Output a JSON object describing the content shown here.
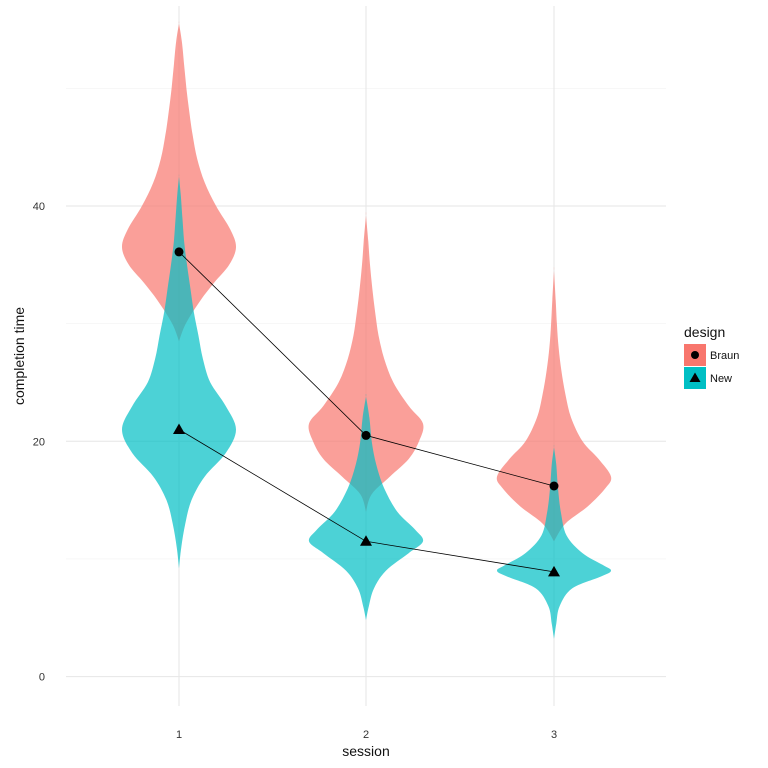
{
  "chart_data": {
    "type": "violin",
    "title": "",
    "xlabel": "session",
    "ylabel": "completion time",
    "categories": [
      "1",
      "2",
      "3"
    ],
    "yticks": [
      0,
      20,
      40
    ],
    "ytick_labels": [
      "0",
      "20",
      "40"
    ],
    "ylim": [
      -2.5,
      57
    ],
    "grid": true,
    "legend": {
      "title": "design",
      "position": "right"
    },
    "series": [
      {
        "name": "Braun",
        "color": "#F8766D",
        "marker": "circle",
        "means": [
          36.1,
          20.5,
          16.2
        ],
        "violins": [
          {
            "profile": [
              [
                28.5,
                0
              ],
              [
                30,
                0.12
              ],
              [
                32,
                0.38
              ],
              [
                33.5,
                0.62
              ],
              [
                35,
                0.88
              ],
              [
                36.5,
                1.0
              ],
              [
                38,
                0.9
              ],
              [
                40,
                0.65
              ],
              [
                42,
                0.45
              ],
              [
                44,
                0.32
              ],
              [
                46,
                0.24
              ],
              [
                48,
                0.18
              ],
              [
                50,
                0.13
              ],
              [
                52,
                0.09
              ],
              [
                54,
                0.05
              ],
              [
                55.5,
                0
              ]
            ]
          },
          {
            "profile": [
              [
                14,
                0
              ],
              [
                15.5,
                0.1
              ],
              [
                17,
                0.42
              ],
              [
                18.5,
                0.75
              ],
              [
                20,
                0.93
              ],
              [
                21.5,
                1.0
              ],
              [
                23,
                0.75
              ],
              [
                25,
                0.48
              ],
              [
                27,
                0.32
              ],
              [
                29,
                0.22
              ],
              [
                31,
                0.16
              ],
              [
                33,
                0.11
              ],
              [
                35,
                0.07
              ],
              [
                37,
                0.04
              ],
              [
                39.2,
                0
              ]
            ]
          },
          {
            "profile": [
              [
                11.5,
                0
              ],
              [
                13,
                0.2
              ],
              [
                14.5,
                0.6
              ],
              [
                16,
                0.9
              ],
              [
                17,
                1.0
              ],
              [
                18.5,
                0.78
              ],
              [
                20,
                0.5
              ],
              [
                22,
                0.3
              ],
              [
                24,
                0.2
              ],
              [
                26,
                0.13
              ],
              [
                28,
                0.08
              ],
              [
                30,
                0.05
              ],
              [
                32,
                0.03
              ],
              [
                34.5,
                0
              ]
            ]
          }
        ]
      },
      {
        "name": "New",
        "color": "#00BFC4",
        "marker": "triangle",
        "means": [
          21.0,
          11.5,
          8.9
        ],
        "violins": [
          {
            "profile": [
              [
                9.2,
                0
              ],
              [
                11,
                0.04
              ],
              [
                13,
                0.11
              ],
              [
                15,
                0.22
              ],
              [
                17,
                0.45
              ],
              [
                19,
                0.82
              ],
              [
                21,
                1.0
              ],
              [
                23,
                0.82
              ],
              [
                25,
                0.55
              ],
              [
                27,
                0.42
              ],
              [
                29,
                0.34
              ],
              [
                31,
                0.26
              ],
              [
                33,
                0.2
              ],
              [
                35,
                0.14
              ],
              [
                37,
                0.09
              ],
              [
                39,
                0.06
              ],
              [
                41,
                0.03
              ],
              [
                42.5,
                0
              ]
            ]
          },
          {
            "profile": [
              [
                4.8,
                0
              ],
              [
                6,
                0.05
              ],
              [
                7.5,
                0.14
              ],
              [
                9,
                0.35
              ],
              [
                10.5,
                0.75
              ],
              [
                11.5,
                1.0
              ],
              [
                12.5,
                0.86
              ],
              [
                14,
                0.55
              ],
              [
                16,
                0.32
              ],
              [
                18,
                0.18
              ],
              [
                20,
                0.1
              ],
              [
                22,
                0.06
              ],
              [
                23.8,
                0
              ]
            ]
          },
          {
            "profile": [
              [
                3.2,
                0
              ],
              [
                4.5,
                0.04
              ],
              [
                6,
                0.1
              ],
              [
                7.5,
                0.32
              ],
              [
                8.5,
                0.82
              ],
              [
                9,
                1.0
              ],
              [
                9.5,
                0.85
              ],
              [
                10.5,
                0.5
              ],
              [
                12,
                0.22
              ],
              [
                14,
                0.12
              ],
              [
                16,
                0.07
              ],
              [
                18,
                0.04
              ],
              [
                19.5,
                0
              ]
            ]
          }
        ]
      }
    ]
  }
}
